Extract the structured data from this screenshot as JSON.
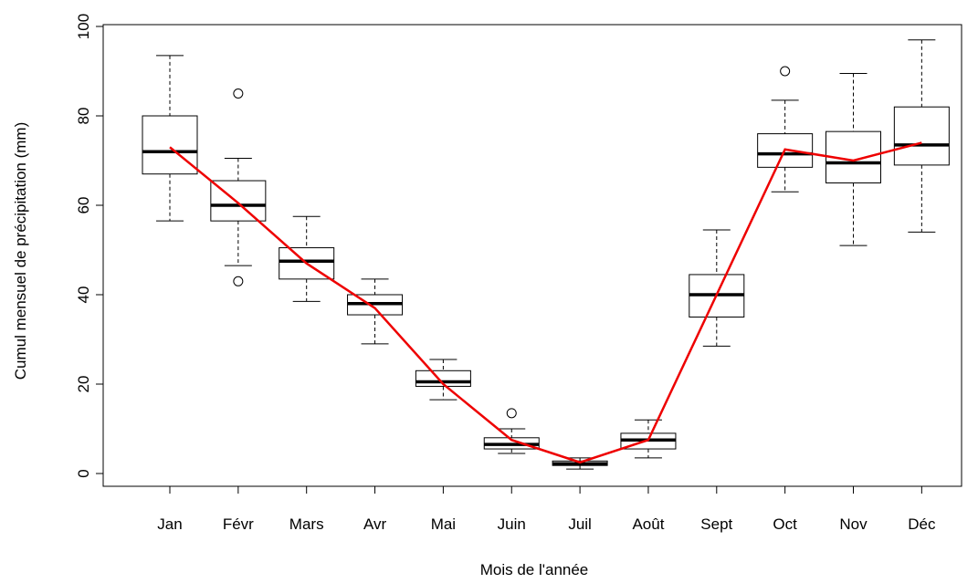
{
  "chart_data": {
    "type": "boxplot",
    "xlabel": "Mois de l'année",
    "ylabel": "Cumul mensuel de précipitation (mm)",
    "ylim": [
      0,
      100
    ],
    "yticks": [
      0,
      20,
      40,
      60,
      80,
      100
    ],
    "categories": [
      "Jan",
      "Févr",
      "Mars",
      "Avr",
      "Mai",
      "Juin",
      "Juil",
      "Août",
      "Sept",
      "Oct",
      "Nov",
      "Déc"
    ],
    "boxes": [
      {
        "min": 56.5,
        "q1": 67,
        "median": 72,
        "q3": 80,
        "max": 93.5,
        "outliers": []
      },
      {
        "min": 46.5,
        "q1": 56.5,
        "median": 60,
        "q3": 65.5,
        "max": 70.5,
        "outliers": [
          85,
          43
        ]
      },
      {
        "min": 38.5,
        "q1": 43.5,
        "median": 47.5,
        "q3": 50.5,
        "max": 57.5,
        "outliers": []
      },
      {
        "min": 29,
        "q1": 35.5,
        "median": 38,
        "q3": 40,
        "max": 43.5,
        "outliers": []
      },
      {
        "min": 16.5,
        "q1": 19.5,
        "median": 20.5,
        "q3": 23,
        "max": 25.5,
        "outliers": []
      },
      {
        "min": 4.5,
        "q1": 5.5,
        "median": 6.5,
        "q3": 8,
        "max": 10,
        "outliers": [
          13.5
        ]
      },
      {
        "min": 1,
        "q1": 1.8,
        "median": 2.2,
        "q3": 2.8,
        "max": 3.5,
        "outliers": []
      },
      {
        "min": 3.5,
        "q1": 5.5,
        "median": 7.5,
        "q3": 9,
        "max": 12,
        "outliers": []
      },
      {
        "min": 28.5,
        "q1": 35,
        "median": 40,
        "q3": 44.5,
        "max": 54.5,
        "outliers": []
      },
      {
        "min": 63,
        "q1": 68.5,
        "median": 71.5,
        "q3": 76,
        "max": 83.5,
        "outliers": [
          90
        ]
      },
      {
        "min": 51,
        "q1": 65,
        "median": 69.5,
        "q3": 76.5,
        "max": 89.5,
        "outliers": []
      },
      {
        "min": 54,
        "q1": 69,
        "median": 73.5,
        "q3": 82,
        "max": 97,
        "outliers": []
      }
    ],
    "mean_line": {
      "values": [
        73,
        60.5,
        47,
        37,
        20,
        7.5,
        2.5,
        7.5,
        40,
        72.5,
        70,
        74
      ],
      "color": "#ee0000"
    },
    "box_color": "#ffffff",
    "stroke_color": "#000000"
  }
}
